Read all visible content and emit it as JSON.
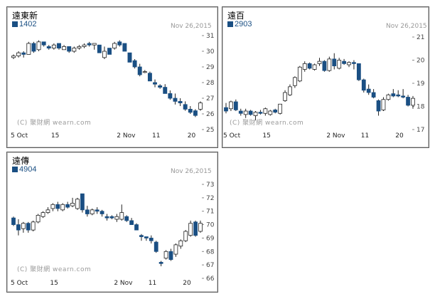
{
  "colors": {
    "accent": "#1a4f83",
    "bull_fill": "#ffffff",
    "axis": "#888888"
  },
  "chart_data": [
    {
      "type": "candlestick",
      "title": "遠東新",
      "code": "1402",
      "date": "Nov 26,2015",
      "watermark": "(C) 聚財網 wearn.com",
      "xlabel": "",
      "ylabel": "",
      "ylim": [
        25,
        31
      ],
      "yticks": [
        "31",
        "30",
        "29",
        "28",
        "27",
        "26",
        "25"
      ],
      "xticks": [
        {
          "label": "5 Oct",
          "index": 0
        },
        {
          "label": "15",
          "index": 8
        },
        {
          "label": "2 Nov",
          "index": 21
        },
        {
          "label": "11",
          "index": 28
        },
        {
          "label": "20",
          "index": 35
        }
      ],
      "candles": [
        {
          "o": 29.6,
          "h": 29.8,
          "l": 29.5,
          "c": 29.7
        },
        {
          "o": 29.7,
          "h": 30.0,
          "l": 29.6,
          "c": 29.9
        },
        {
          "o": 29.9,
          "h": 30.0,
          "l": 29.6,
          "c": 29.8
        },
        {
          "o": 29.8,
          "h": 30.6,
          "l": 29.8,
          "c": 30.5
        },
        {
          "o": 30.5,
          "h": 30.6,
          "l": 29.9,
          "c": 30.0
        },
        {
          "o": 30.1,
          "h": 30.7,
          "l": 30.0,
          "c": 30.6
        },
        {
          "o": 30.6,
          "h": 30.6,
          "l": 30.3,
          "c": 30.4
        },
        {
          "o": 30.3,
          "h": 30.4,
          "l": 30.1,
          "c": 30.2
        },
        {
          "o": 30.2,
          "h": 30.5,
          "l": 30.1,
          "c": 30.4
        },
        {
          "o": 30.5,
          "h": 30.5,
          "l": 30.1,
          "c": 30.2
        },
        {
          "o": 30.1,
          "h": 30.4,
          "l": 30.1,
          "c": 30.3
        },
        {
          "o": 30.3,
          "h": 30.3,
          "l": 29.9,
          "c": 30.0
        },
        {
          "o": 30.0,
          "h": 30.3,
          "l": 29.9,
          "c": 30.2
        },
        {
          "o": 30.2,
          "h": 30.4,
          "l": 30.1,
          "c": 30.3
        },
        {
          "o": 30.3,
          "h": 30.5,
          "l": 30.2,
          "c": 30.4
        },
        {
          "o": 30.5,
          "h": 30.6,
          "l": 30.3,
          "c": 30.4
        },
        {
          "o": 30.4,
          "h": 30.5,
          "l": 30.1,
          "c": 30.5
        },
        {
          "o": 30.4,
          "h": 30.4,
          "l": 29.9,
          "c": 29.9
        },
        {
          "o": 29.6,
          "h": 30.3,
          "l": 29.5,
          "c": 30.0
        },
        {
          "o": 30.2,
          "h": 30.2,
          "l": 29.8,
          "c": 29.8
        },
        {
          "o": 30.2,
          "h": 30.6,
          "l": 30.1,
          "c": 30.5
        },
        {
          "o": 30.6,
          "h": 30.7,
          "l": 30.3,
          "c": 30.4
        },
        {
          "o": 30.5,
          "h": 30.5,
          "l": 30.0,
          "c": 30.0
        },
        {
          "o": 29.9,
          "h": 29.9,
          "l": 29.3,
          "c": 29.3
        },
        {
          "o": 29.4,
          "h": 29.5,
          "l": 28.9,
          "c": 29.0
        },
        {
          "o": 29.0,
          "h": 29.2,
          "l": 28.4,
          "c": 28.5
        },
        {
          "o": 28.7,
          "h": 28.8,
          "l": 28.6,
          "c": 28.7
        },
        {
          "o": 28.6,
          "h": 28.7,
          "l": 28.1,
          "c": 28.1
        },
        {
          "o": 28.0,
          "h": 28.2,
          "l": 27.7,
          "c": 27.9
        },
        {
          "o": 27.8,
          "h": 27.9,
          "l": 27.6,
          "c": 27.7
        },
        {
          "o": 27.7,
          "h": 27.9,
          "l": 27.3,
          "c": 27.3
        },
        {
          "o": 27.3,
          "h": 27.5,
          "l": 26.9,
          "c": 27.0
        },
        {
          "o": 27.0,
          "h": 27.3,
          "l": 26.6,
          "c": 26.8
        },
        {
          "o": 26.8,
          "h": 27.0,
          "l": 26.5,
          "c": 26.7
        },
        {
          "o": 26.6,
          "h": 26.8,
          "l": 26.2,
          "c": 26.3
        },
        {
          "o": 26.3,
          "h": 26.5,
          "l": 26.0,
          "c": 26.1
        },
        {
          "o": 26.2,
          "h": 26.3,
          "l": 25.8,
          "c": 25.9
        },
        {
          "o": 26.3,
          "h": 26.8,
          "l": 26.2,
          "c": 26.7
        }
      ]
    },
    {
      "type": "candlestick",
      "title": "遠百",
      "code": "2903",
      "date": "Nov 26,2015",
      "watermark": "(C) 聚財網 wearn.com",
      "xlabel": "",
      "ylabel": "",
      "ylim": [
        17,
        21
      ],
      "yticks": [
        "21",
        "20",
        "19",
        "18",
        "17"
      ],
      "xticks": [
        {
          "label": "5 Oct",
          "index": 0
        },
        {
          "label": "15",
          "index": 8
        },
        {
          "label": "2 Nov",
          "index": 21
        },
        {
          "label": "11",
          "index": 28
        },
        {
          "label": "20",
          "index": 35
        }
      ],
      "candles": [
        {
          "o": 17.95,
          "h": 18.15,
          "l": 17.7,
          "c": 17.8
        },
        {
          "o": 17.9,
          "h": 18.25,
          "l": 17.8,
          "c": 18.2
        },
        {
          "o": 18.2,
          "h": 18.3,
          "l": 17.8,
          "c": 17.85
        },
        {
          "o": 17.8,
          "h": 17.9,
          "l": 17.6,
          "c": 17.7
        },
        {
          "o": 17.65,
          "h": 17.9,
          "l": 17.5,
          "c": 17.8
        },
        {
          "o": 17.8,
          "h": 17.85,
          "l": 17.6,
          "c": 17.65
        },
        {
          "o": 17.6,
          "h": 17.8,
          "l": 17.4,
          "c": 17.75
        },
        {
          "o": 17.75,
          "h": 17.85,
          "l": 17.65,
          "c": 17.7
        },
        {
          "o": 17.7,
          "h": 17.95,
          "l": 17.6,
          "c": 17.9
        },
        {
          "o": 17.65,
          "h": 17.85,
          "l": 17.6,
          "c": 17.8
        },
        {
          "o": 17.85,
          "h": 17.9,
          "l": 17.7,
          "c": 17.75
        },
        {
          "o": 17.7,
          "h": 18.1,
          "l": 17.65,
          "c": 18.1
        },
        {
          "o": 18.25,
          "h": 18.7,
          "l": 18.2,
          "c": 18.6
        },
        {
          "o": 18.5,
          "h": 18.95,
          "l": 18.45,
          "c": 18.85
        },
        {
          "o": 18.9,
          "h": 19.3,
          "l": 18.8,
          "c": 19.25
        },
        {
          "o": 19.1,
          "h": 19.75,
          "l": 19.05,
          "c": 19.7
        },
        {
          "o": 19.6,
          "h": 19.95,
          "l": 19.5,
          "c": 19.85
        },
        {
          "o": 19.85,
          "h": 19.9,
          "l": 19.6,
          "c": 19.65
        },
        {
          "o": 19.6,
          "h": 19.85,
          "l": 19.55,
          "c": 19.8
        },
        {
          "o": 19.85,
          "h": 20.1,
          "l": 19.75,
          "c": 19.95
        },
        {
          "o": 19.95,
          "h": 20.0,
          "l": 19.5,
          "c": 19.55
        },
        {
          "o": 19.55,
          "h": 20.15,
          "l": 19.5,
          "c": 20.05
        },
        {
          "o": 20.05,
          "h": 20.3,
          "l": 19.6,
          "c": 19.75
        },
        {
          "o": 19.65,
          "h": 20.1,
          "l": 19.6,
          "c": 20.0
        },
        {
          "o": 19.95,
          "h": 20.05,
          "l": 19.8,
          "c": 19.85
        },
        {
          "o": 19.8,
          "h": 19.95,
          "l": 19.7,
          "c": 19.9
        },
        {
          "o": 19.9,
          "h": 20.0,
          "l": 19.6,
          "c": 19.85
        },
        {
          "o": 19.85,
          "h": 19.85,
          "l": 19.1,
          "c": 19.15
        },
        {
          "o": 19.15,
          "h": 19.2,
          "l": 18.6,
          "c": 18.7
        },
        {
          "o": 18.75,
          "h": 18.95,
          "l": 18.5,
          "c": 18.6
        },
        {
          "o": 18.6,
          "h": 18.75,
          "l": 18.35,
          "c": 18.4
        },
        {
          "o": 18.25,
          "h": 18.3,
          "l": 17.6,
          "c": 17.8
        },
        {
          "o": 17.85,
          "h": 18.4,
          "l": 17.8,
          "c": 18.3
        },
        {
          "o": 18.3,
          "h": 18.55,
          "l": 18.25,
          "c": 18.5
        },
        {
          "o": 18.55,
          "h": 18.75,
          "l": 18.4,
          "c": 18.45
        },
        {
          "o": 18.5,
          "h": 18.7,
          "l": 18.4,
          "c": 18.45
        },
        {
          "o": 18.45,
          "h": 18.75,
          "l": 18.35,
          "c": 18.4
        },
        {
          "o": 18.4,
          "h": 18.5,
          "l": 18.0,
          "c": 18.05
        },
        {
          "o": 18.05,
          "h": 18.45,
          "l": 17.9,
          "c": 18.35
        }
      ]
    },
    {
      "type": "candlestick",
      "title": "遠傳",
      "code": "4904",
      "date": "Nov 26,2015",
      "watermark": "(C) 聚財網 wearn.com",
      "xlabel": "",
      "ylabel": "",
      "ylim": [
        66,
        73
      ],
      "yticks": [
        "73",
        "72",
        "71",
        "70",
        "69",
        "68",
        "67",
        "66"
      ],
      "xticks": [
        {
          "label": "5 Oct",
          "index": 0
        },
        {
          "label": "15",
          "index": 8
        },
        {
          "label": "2 Nov",
          "index": 21
        },
        {
          "label": "11",
          "index": 28
        },
        {
          "label": "20",
          "index": 35
        }
      ],
      "candles": [
        {
          "o": 70.5,
          "h": 70.6,
          "l": 69.9,
          "c": 70.0
        },
        {
          "o": 70.0,
          "h": 70.4,
          "l": 69.2,
          "c": 69.6
        },
        {
          "o": 69.7,
          "h": 70.2,
          "l": 69.4,
          "c": 70.1
        },
        {
          "o": 70.1,
          "h": 70.2,
          "l": 69.4,
          "c": 69.6
        },
        {
          "o": 69.6,
          "h": 70.3,
          "l": 69.5,
          "c": 70.2
        },
        {
          "o": 70.2,
          "h": 70.8,
          "l": 70.1,
          "c": 70.7
        },
        {
          "o": 70.6,
          "h": 71.0,
          "l": 70.5,
          "c": 70.9
        },
        {
          "o": 70.9,
          "h": 71.3,
          "l": 70.8,
          "c": 71.1
        },
        {
          "o": 71.2,
          "h": 71.6,
          "l": 71.0,
          "c": 71.5
        },
        {
          "o": 71.5,
          "h": 71.7,
          "l": 71.0,
          "c": 71.2
        },
        {
          "o": 71.1,
          "h": 71.6,
          "l": 71.0,
          "c": 71.5
        },
        {
          "o": 71.5,
          "h": 71.7,
          "l": 71.2,
          "c": 71.3
        },
        {
          "o": 71.4,
          "h": 72.0,
          "l": 71.3,
          "c": 71.6
        },
        {
          "o": 71.2,
          "h": 72.0,
          "l": 71.1,
          "c": 71.9
        },
        {
          "o": 72.3,
          "h": 72.3,
          "l": 70.9,
          "c": 71.1
        },
        {
          "o": 71.1,
          "h": 71.4,
          "l": 70.6,
          "c": 70.8
        },
        {
          "o": 70.8,
          "h": 71.2,
          "l": 70.7,
          "c": 71.1
        },
        {
          "o": 71.1,
          "h": 71.3,
          "l": 70.8,
          "c": 71.0
        },
        {
          "o": 71.0,
          "h": 71.1,
          "l": 70.6,
          "c": 70.8
        },
        {
          "o": 70.6,
          "h": 70.8,
          "l": 70.3,
          "c": 70.5
        },
        {
          "o": 70.6,
          "h": 70.7,
          "l": 70.4,
          "c": 70.5
        },
        {
          "o": 70.4,
          "h": 70.8,
          "l": 70.2,
          "c": 70.6
        },
        {
          "o": 70.4,
          "h": 71.5,
          "l": 70.3,
          "c": 70.9
        },
        {
          "o": 70.6,
          "h": 70.7,
          "l": 70.2,
          "c": 70.3
        },
        {
          "o": 70.3,
          "h": 70.5,
          "l": 70.0,
          "c": 70.0
        },
        {
          "o": 70.0,
          "h": 70.1,
          "l": 69.6,
          "c": 69.6
        },
        {
          "o": 69.2,
          "h": 69.3,
          "l": 68.8,
          "c": 69.1
        },
        {
          "o": 69.1,
          "h": 69.1,
          "l": 68.8,
          "c": 69.0
        },
        {
          "o": 69.0,
          "h": 69.2,
          "l": 68.6,
          "c": 68.8
        },
        {
          "o": 68.7,
          "h": 68.8,
          "l": 67.9,
          "c": 68.0
        },
        {
          "o": 67.2,
          "h": 67.3,
          "l": 66.9,
          "c": 67.1
        },
        {
          "o": 67.5,
          "h": 68.1,
          "l": 67.4,
          "c": 68.0
        },
        {
          "o": 68.0,
          "h": 68.2,
          "l": 67.3,
          "c": 67.4
        },
        {
          "o": 67.8,
          "h": 68.6,
          "l": 67.6,
          "c": 68.5
        },
        {
          "o": 68.4,
          "h": 68.9,
          "l": 68.2,
          "c": 68.8
        },
        {
          "o": 68.8,
          "h": 69.6,
          "l": 68.7,
          "c": 69.5
        },
        {
          "o": 69.2,
          "h": 70.3,
          "l": 69.1,
          "c": 70.1
        },
        {
          "o": 70.2,
          "h": 70.3,
          "l": 69.1,
          "c": 69.2
        },
        {
          "o": 69.5,
          "h": 70.3,
          "l": 69.4,
          "c": 70.1
        }
      ]
    }
  ]
}
